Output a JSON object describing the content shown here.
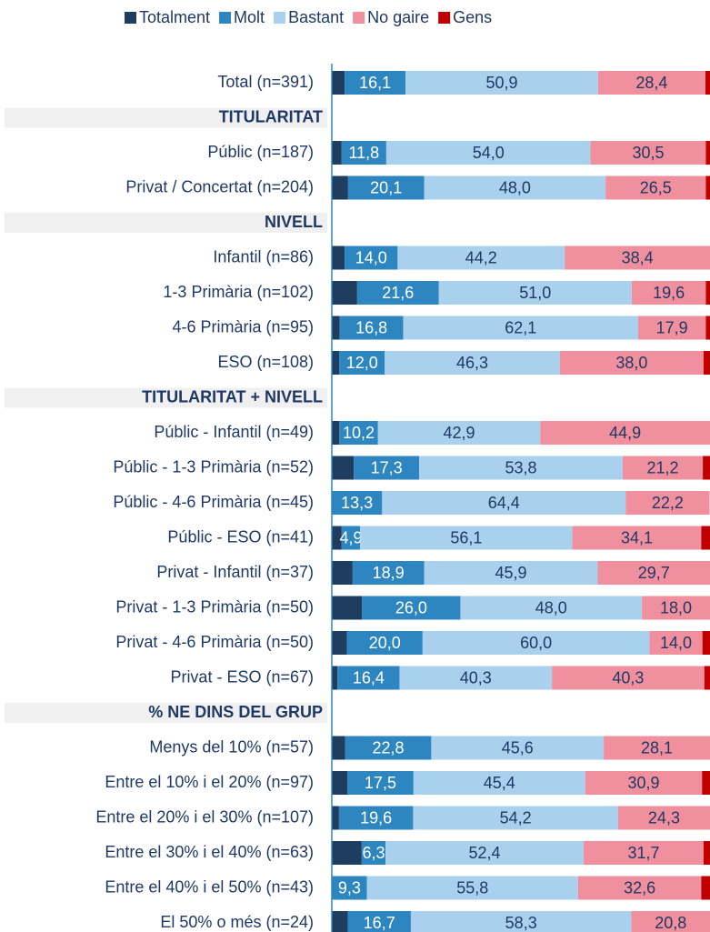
{
  "chart_data": {
    "type": "stacked_bar_horizontal",
    "categories": [
      "Total  (n=391)",
      "TITULARITAT",
      "Públic (n=187)",
      "Privat / Concertat (n=204)",
      "NIVELL",
      "Infantil (n=86)",
      "1-3 Primària (n=102)",
      "4-6 Primària (n=95)",
      "ESO (n=108)",
      "TITULARITAT + NIVELL",
      "Públic - Infantil (n=49)",
      "Públic - 1-3 Primària (n=52)",
      "Públic - 4-6 Primària (n=45)",
      "Públic - ESO (n=41)",
      "Privat - Infantil (n=37)",
      "Privat - 1-3 Primària (n=50)",
      "Privat - 4-6 Primària (n=50)",
      "Privat - ESO (n=67)",
      "% NE DINS DEL GRUP",
      "Menys del 10% (n=57)",
      "Entre el 10% i el 20% (n=97)",
      "Entre el 20% i el 30% (n=107)",
      "Entre el 30% i el 40% (n=63)",
      "Entre el 40% i el 50% (n=43)",
      "El 50% o més (n=24)"
    ],
    "xlim": [
      0,
      100
    ],
    "series": [
      {
        "name": "Totalment",
        "color": "#1f3e5f",
        "values": [
          3.4,
          null,
          2.6,
          4.3,
          null,
          3.4,
          6.7,
          2.1,
          2.0,
          null,
          2.0,
          5.8,
          0,
          2.6,
          5.5,
          8.0,
          4.0,
          1.5,
          null,
          3.5,
          4.1,
          1.9,
          7.9,
          0,
          4.2
        ]
      },
      {
        "name": "Molt",
        "color": "#2e86c1",
        "values": [
          16.1,
          null,
          11.8,
          20.1,
          null,
          14.0,
          21.6,
          16.8,
          12.0,
          null,
          10.2,
          17.3,
          13.3,
          4.9,
          18.9,
          26.0,
          20.0,
          16.4,
          null,
          22.8,
          17.5,
          19.6,
          6.3,
          9.3,
          16.7
        ],
        "value_labels": [
          "16,1",
          null,
          "11,8",
          "20,1",
          null,
          "14,0",
          "21,6",
          "16,8",
          "12,0",
          null,
          "10,2",
          "17,3",
          "13,3",
          "4,9",
          "18,9",
          "26,0",
          "20,0",
          "16,4",
          null,
          "22,8",
          "17,5",
          "19,6",
          "6,3",
          "9,3",
          "16,7"
        ]
      },
      {
        "name": "Bastant",
        "color": "#a9d1ee",
        "values": [
          50.9,
          null,
          54.0,
          48.0,
          null,
          44.2,
          51.0,
          62.1,
          46.3,
          null,
          42.9,
          53.8,
          64.4,
          56.1,
          45.9,
          48.0,
          60.0,
          40.3,
          null,
          45.6,
          45.4,
          54.2,
          52.4,
          55.8,
          58.3
        ],
        "value_labels": [
          "50,9",
          null,
          "54,0",
          "48,0",
          null,
          "44,2",
          "51,0",
          "62,1",
          "46,3",
          null,
          "42,9",
          "53,8",
          "64,4",
          "56,1",
          "45,9",
          "48,0",
          "60,0",
          "40,3",
          null,
          "45,6",
          "45,4",
          "54,2",
          "52,4",
          "55,8",
          "58,3"
        ]
      },
      {
        "name": "No gaire",
        "color": "#f0909e",
        "values": [
          28.4,
          null,
          30.5,
          26.5,
          null,
          38.4,
          19.6,
          17.9,
          38.0,
          null,
          44.9,
          21.2,
          22.2,
          34.1,
          29.7,
          18.0,
          14.0,
          40.3,
          null,
          28.1,
          30.9,
          24.3,
          31.7,
          32.6,
          20.8
        ],
        "value_labels": [
          "28,4",
          null,
          "30,5",
          "26,5",
          null,
          "38,4",
          "19,6",
          "17,9",
          "38,0",
          null,
          "44,9",
          "21,2",
          "22,2",
          "34,1",
          "29,7",
          "18,0",
          "14,0",
          "40,3",
          null,
          "28,1",
          "30,9",
          "24,3",
          "31,7",
          "32,6",
          "20,8"
        ]
      },
      {
        "name": "Gens",
        "color": "#c00000",
        "values": [
          1.2,
          null,
          1.1,
          1.1,
          null,
          0,
          1.1,
          1.1,
          1.7,
          null,
          0,
          1.9,
          0,
          2.4,
          0,
          0,
          2.0,
          1.5,
          null,
          0,
          2.1,
          0,
          1.7,
          2.3,
          0
        ]
      }
    ]
  }
}
